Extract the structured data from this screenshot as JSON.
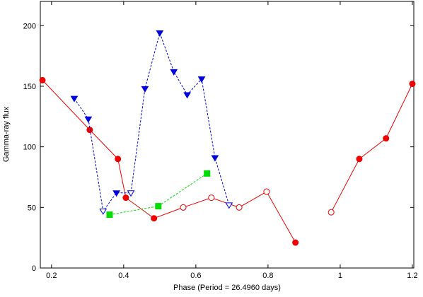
{
  "chart_data": {
    "type": "line",
    "xlabel": "Phase (Period = 26.4960 days)",
    "ylabel": "Gamma-ray flux",
    "xlim": [
      0.169,
      1.204
    ],
    "ylim": [
      0,
      220
    ],
    "xticks": [
      0.2,
      0.4,
      0.6,
      0.8,
      1,
      1.2
    ],
    "yticks": [
      0,
      50,
      100,
      150,
      200
    ],
    "series": [
      {
        "color": "#ee0000",
        "marker": "circle",
        "dash": false,
        "x": [
          0.175,
          0.306,
          0.384,
          0.406,
          0.484,
          0.565,
          0.643,
          0.72,
          0.796,
          0.876,
          null,
          0.975,
          1.053,
          1.127,
          1.2
        ],
        "values": [
          155,
          114,
          90,
          58,
          41,
          50,
          58,
          50,
          63,
          21,
          null,
          46,
          90,
          107,
          152
        ],
        "open": [
          false,
          false,
          false,
          false,
          false,
          true,
          true,
          true,
          true,
          false,
          false,
          true,
          false,
          false,
          false
        ]
      },
      {
        "color": "#0000dd",
        "marker": "triangle-down",
        "dash": true,
        "x": [
          0.263,
          0.302,
          0.343,
          0.38,
          0.42,
          0.459,
          0.5,
          0.539,
          0.576,
          0.616,
          0.653,
          0.692
        ],
        "values": [
          140,
          123,
          47,
          62,
          62,
          148,
          194,
          162,
          143,
          156,
          91,
          52
        ],
        "open": [
          false,
          false,
          true,
          false,
          true,
          false,
          false,
          false,
          false,
          false,
          false,
          true
        ]
      },
      {
        "color": "#00dd00",
        "marker": "square",
        "dash": true,
        "x": [
          0.361,
          0.496,
          0.631
        ],
        "values": [
          44,
          51,
          78
        ],
        "open": [
          false,
          false,
          false
        ]
      }
    ]
  }
}
